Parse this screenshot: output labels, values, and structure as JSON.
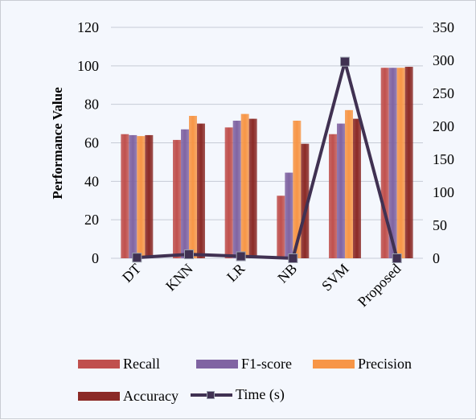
{
  "chart_data": {
    "type": "bar",
    "categories": [
      "DT",
      "KNN",
      "LR",
      "NB",
      "SVM",
      "Proposed"
    ],
    "series": [
      {
        "name": "Recall",
        "type": "bar",
        "axis": "left",
        "color": "#c0504d",
        "values": [
          64.5,
          61.5,
          68,
          32.5,
          64.5,
          99
        ]
      },
      {
        "name": "F1-score",
        "type": "bar",
        "axis": "left",
        "color": "#8064a2",
        "values": [
          64,
          67,
          71.5,
          44.5,
          70,
          99
        ]
      },
      {
        "name": "Precision",
        "type": "bar",
        "axis": "left",
        "color": "#f79646",
        "values": [
          63.5,
          74,
          75,
          71.5,
          77,
          99
        ]
      },
      {
        "name": "Accuracy",
        "type": "bar",
        "axis": "left",
        "color": "#8b2a26",
        "values": [
          64,
          70,
          72.5,
          59.5,
          72.5,
          99.5
        ]
      },
      {
        "name": "Time (s)",
        "type": "line",
        "axis": "right",
        "color": "#403152",
        "values": [
          1,
          6,
          3,
          0,
          298,
          0
        ]
      }
    ],
    "ylabel": "Performance Value",
    "ylim": [
      0,
      120
    ],
    "yticks": [
      "0",
      "20",
      "40",
      "60",
      "80",
      "100",
      "120"
    ],
    "y2lim": [
      0,
      350
    ],
    "y2ticks": [
      "0",
      "50",
      "100",
      "150",
      "200",
      "250",
      "300",
      "350"
    ],
    "grid": true,
    "legend_position": "bottom"
  }
}
